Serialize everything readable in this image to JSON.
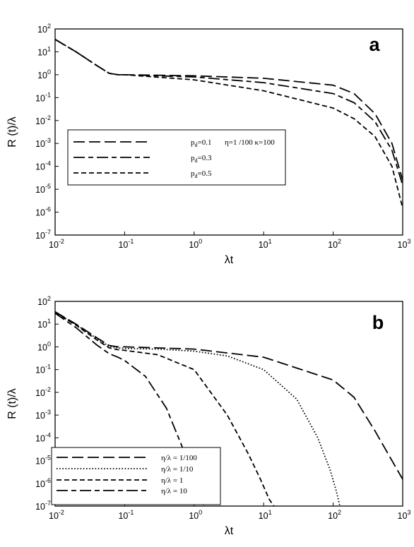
{
  "chart_data": [
    {
      "type": "line",
      "panel_label": "a",
      "xlabel": "λt",
      "ylabel": "R (t)/λ",
      "x_scale": "log",
      "y_scale": "log",
      "xlim": [
        0.01,
        1000
      ],
      "ylim": [
        1e-07,
        100
      ],
      "x_ticks": [
        "10^-2",
        "10^-1",
        "10^0",
        "10^1",
        "10^2",
        "10^3"
      ],
      "y_ticks": [
        "10^-7",
        "10^-6",
        "10^-5",
        "10^-4",
        "10^-3",
        "10^-2",
        "10^-1",
        "10^0",
        "10^1",
        "10^2"
      ],
      "legend_placement": "lower-left",
      "legend_note": "η=1 /100   κ=100",
      "series": [
        {
          "name": "pd=0.1",
          "label_main": "p",
          "label_sub": "d",
          "label_rest": "=0.1",
          "dash": "long",
          "x": [
            0.01,
            0.02,
            0.04,
            0.06,
            0.08,
            0.1,
            1,
            10,
            100,
            200,
            400,
            700,
            1000
          ],
          "y": [
            35,
            10,
            2.5,
            1.15,
            1.0,
            1.0,
            0.9,
            0.7,
            0.35,
            0.15,
            0.02,
            0.001,
            2.5e-05
          ]
        },
        {
          "name": "pd=0.3",
          "label_main": "p",
          "label_sub": "d",
          "label_rest": "=0.3",
          "dash": "longshort",
          "x": [
            0.01,
            0.02,
            0.04,
            0.06,
            0.08,
            0.1,
            1,
            10,
            100,
            200,
            400,
            700,
            1000
          ],
          "y": [
            35,
            10,
            2.5,
            1.15,
            1.0,
            1.0,
            0.8,
            0.45,
            0.15,
            0.06,
            0.009,
            0.0005,
            1.5e-05
          ]
        },
        {
          "name": "pd=0.5",
          "label_main": "p",
          "label_sub": "d",
          "label_rest": "=0.5",
          "dash": "short",
          "x": [
            0.01,
            0.02,
            0.04,
            0.06,
            0.08,
            0.1,
            1,
            10,
            100,
            200,
            400,
            700,
            1000
          ],
          "y": [
            35,
            10,
            2.5,
            1.15,
            1.0,
            1.0,
            0.6,
            0.2,
            0.035,
            0.012,
            0.002,
            0.0001,
            1.5e-06
          ]
        }
      ]
    },
    {
      "type": "line",
      "panel_label": "b",
      "xlabel": "λt",
      "ylabel": "R (t)/λ",
      "x_scale": "log",
      "y_scale": "log",
      "xlim": [
        0.01,
        1000
      ],
      "ylim": [
        1e-07,
        100
      ],
      "x_ticks": [
        "10^-2",
        "10^-1",
        "10^0",
        "10^1",
        "10^2",
        "10^3"
      ],
      "y_ticks": [
        "10^-7",
        "10^-6",
        "10^-5",
        "10^-4",
        "10^-3",
        "10^-2",
        "10^-1",
        "10^0",
        "10^1",
        "10^2"
      ],
      "legend_placement": "lower-left",
      "series": [
        {
          "name": "η/λ = 1/100",
          "dash": "long",
          "x": [
            0.01,
            0.02,
            0.04,
            0.06,
            0.08,
            0.1,
            1,
            10,
            100,
            200,
            400,
            700,
            1000
          ],
          "y": [
            35,
            10,
            2.5,
            1.15,
            1.0,
            1.0,
            0.8,
            0.35,
            0.035,
            0.006,
            0.0002,
            1e-05,
            1.5e-06
          ]
        },
        {
          "name": "η/λ = 1/10",
          "dash": "dotted",
          "x": [
            0.01,
            0.02,
            0.04,
            0.06,
            0.08,
            0.1,
            0.3,
            1,
            3,
            10,
            30,
            60,
            90,
            110,
            125
          ],
          "y": [
            34,
            9.5,
            2.3,
            1.05,
            0.9,
            0.85,
            0.8,
            0.65,
            0.4,
            0.1,
            0.005,
            0.0001,
            4e-06,
            5e-07,
            1e-07
          ]
        },
        {
          "name": "η/λ = 1",
          "dash": "short",
          "x": [
            0.01,
            0.02,
            0.04,
            0.06,
            0.08,
            0.1,
            0.3,
            1,
            3,
            6,
            9,
            12,
            14
          ],
          "y": [
            33,
            9,
            2.0,
            0.9,
            0.75,
            0.7,
            0.45,
            0.1,
            0.001,
            2e-05,
            1.5e-06,
            2e-07,
            1e-07
          ]
        },
        {
          "name": "η/λ = 10",
          "dash": "longshort",
          "x": [
            0.01,
            0.02,
            0.04,
            0.06,
            0.08,
            0.1,
            0.2,
            0.4,
            0.7,
            1.0,
            1.2,
            1.4
          ],
          "y": [
            30,
            7,
            1.2,
            0.5,
            0.35,
            0.25,
            0.05,
            0.002,
            3e-05,
            2e-06,
            4e-07,
            1e-07
          ]
        }
      ]
    }
  ]
}
